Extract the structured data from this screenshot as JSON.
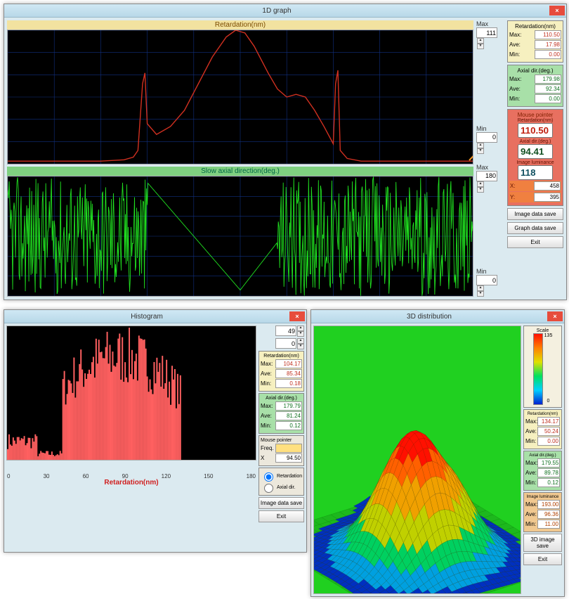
{
  "win1d": {
    "title": "1D graph",
    "chart1": {
      "type": "line",
      "title": "Retardation(nm)",
      "title_bg": "#f2e2a0",
      "title_color": "#7a4a00",
      "background_color": "#000000",
      "grid_color": "#103080",
      "line_color": "#d03020",
      "ylim": [
        0,
        111
      ],
      "max_label": "Max",
      "max_value": "111",
      "min_label": "Min",
      "min_value": "0",
      "points_norm": [
        [
          0.0,
          0.02
        ],
        [
          0.05,
          0.02
        ],
        [
          0.1,
          0.02
        ],
        [
          0.15,
          0.02
        ],
        [
          0.2,
          0.02
        ],
        [
          0.25,
          0.03
        ],
        [
          0.27,
          0.05
        ],
        [
          0.28,
          0.1
        ],
        [
          0.29,
          0.6
        ],
        [
          0.295,
          0.68
        ],
        [
          0.3,
          0.3
        ],
        [
          0.32,
          0.22
        ],
        [
          0.35,
          0.28
        ],
        [
          0.38,
          0.4
        ],
        [
          0.41,
          0.6
        ],
        [
          0.44,
          0.8
        ],
        [
          0.47,
          0.95
        ],
        [
          0.49,
          1.0
        ],
        [
          0.51,
          0.98
        ],
        [
          0.53,
          0.88
        ],
        [
          0.56,
          0.68
        ],
        [
          0.58,
          0.56
        ],
        [
          0.6,
          0.5
        ],
        [
          0.62,
          0.52
        ],
        [
          0.64,
          0.5
        ],
        [
          0.66,
          0.4
        ],
        [
          0.68,
          0.28
        ],
        [
          0.7,
          0.15
        ],
        [
          0.705,
          0.6
        ],
        [
          0.71,
          0.7
        ],
        [
          0.715,
          0.1
        ],
        [
          0.73,
          0.04
        ],
        [
          0.76,
          0.02
        ],
        [
          0.8,
          0.02
        ],
        [
          0.85,
          0.02
        ],
        [
          0.9,
          0.02
        ],
        [
          0.95,
          0.02
        ],
        [
          1.0,
          0.02
        ]
      ]
    },
    "chart2": {
      "type": "line",
      "title": "Slow axial direction(deg.)",
      "title_bg": "#7fd080",
      "title_color": "#064400",
      "background_color": "#000000",
      "grid_color": "#103080",
      "line_color": "#20e020",
      "ylim": [
        0,
        180
      ],
      "max_label": "Max",
      "max_value": "180",
      "min_label": "Min",
      "min_value": "0"
    },
    "panel_ret": {
      "title": "Retardation(nm)",
      "max_label": "Max:",
      "max_value": "110.50",
      "ave_label": "Ave:",
      "ave_value": "17.98",
      "min_label": "Min:",
      "min_value": "0.00",
      "value_color": "#c03020",
      "bg": "#f6f0c0"
    },
    "panel_axial": {
      "title": "Axial dir.(deg.)",
      "max_label": "Max:",
      "max_value": "179.98",
      "ave_label": "Ave:",
      "ave_value": "92.34",
      "min_label": "Min:",
      "min_value": "0.00",
      "value_color": "#107020",
      "bg": "#a8e0a8"
    },
    "panel_mouse": {
      "title": "Mouse pointer",
      "ret_label": "Retardation(nm)",
      "ret_value": "110.50",
      "ax_label": "Axial dir.(deg.)",
      "ax_value": "94.41",
      "lum_label": "Image luminance",
      "lum_value": "118",
      "x_label": "X:",
      "x_value": "458",
      "y_label": "Y:",
      "y_value": "395",
      "bg": "#e87060"
    },
    "btn_img_save": "Image data save",
    "btn_graph_save": "Graph data save",
    "btn_exit": "Exit"
  },
  "histwin": {
    "title": "Histogram",
    "type": "histogram",
    "background_color": "#000000",
    "bar_color": "#ff6060",
    "x_title": "Retardation(nm)",
    "x_ticks": [
      "0",
      "30",
      "60",
      "90",
      "120",
      "150",
      "180"
    ],
    "top_spin1": "49",
    "top_spin2": "0",
    "panel_ret": {
      "title": "Retardation(nm)",
      "max_label": "Max:",
      "max_value": "104.17",
      "ave_label": "Ave:",
      "ave_value": "85.34",
      "min_label": "Min:",
      "min_value": "0.18",
      "bg": "#f6f0c0"
    },
    "panel_axial": {
      "title": "Axial dir.(deg.)",
      "max_label": "Max:",
      "max_value": "179.79",
      "ave_label": "Ave:",
      "ave_value": "81.24",
      "min_label": "Min:",
      "min_value": "0.12",
      "bg": "#a8e0a8"
    },
    "panel_mouse": {
      "title": "Mouse pointer",
      "freq_label": "Freq.",
      "freq_value": "",
      "x_label": "X",
      "x_value": "94.50",
      "bg": "#e8e8e8"
    },
    "radio_ret": "Retardation",
    "radio_ax": "Axial dir.",
    "btn_img_save": "Image data save",
    "btn_exit": "Exit"
  },
  "win3d": {
    "title": "3D distribution",
    "type": "surface3d",
    "background_color": "#20d020",
    "scale_label": "Scale",
    "scale_max": "135",
    "scale_min": "0",
    "panel_ret": {
      "title": "Retardation(nm)",
      "max_label": "Max:",
      "max_value": "134.17",
      "ave_label": "Ave:",
      "ave_value": "50.24",
      "min_label": "Min:",
      "min_value": "0.00",
      "bg": "#f6f0c0"
    },
    "panel_axial": {
      "title": "Axial dir.(deg.)",
      "max_label": "Max:",
      "max_value": "179.55",
      "ave_label": "Ave:",
      "ave_value": "89.78",
      "min_label": "Min:",
      "min_value": "0.12",
      "bg": "#a8e0a8"
    },
    "panel_lum": {
      "title": "Image luminance",
      "max_label": "Max:",
      "max_value": "193.00",
      "ave_label": "Ave:",
      "ave_value": "96.36",
      "min_label": "Min:",
      "min_value": "11.00",
      "bg": "#e8b080"
    },
    "btn_3d_save": "3D image save",
    "btn_exit": "Exit"
  }
}
